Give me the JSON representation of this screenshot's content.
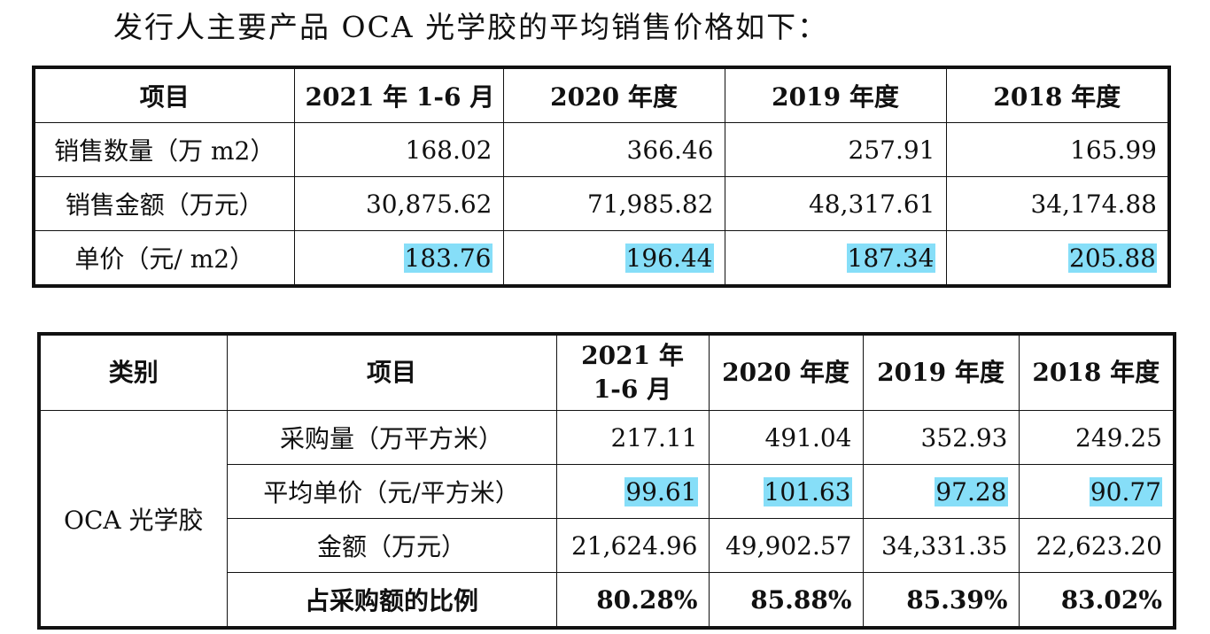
{
  "heading": "发行人主要产品 OCA 光学胶的平均销售价格如下：",
  "table1": {
    "headers": [
      "项目",
      "2021 年 1-6 月",
      "2020 年度",
      "2019 年度",
      "2018 年度"
    ],
    "rows": [
      {
        "label": "销售数量（万 m2）",
        "values": [
          "168.02",
          "366.46",
          "257.91",
          "165.99"
        ]
      },
      {
        "label": "销售金额（万元）",
        "values": [
          "30,875.62",
          "71,985.82",
          "48,317.61",
          "34,174.88"
        ]
      },
      {
        "label": "单价（元/ m2）",
        "values": [
          "183.76",
          "196.44",
          "187.34",
          "205.88"
        ]
      }
    ]
  },
  "table2": {
    "headers": [
      "类别",
      "项目",
      "2021 年",
      "1-6 月",
      "2020 年度",
      "2019 年度",
      "2018 年度"
    ],
    "category": "OCA 光学胶",
    "rows": [
      {
        "label": "采购量（万平方米）",
        "values": [
          "217.11",
          "491.04",
          "352.93",
          "249.25"
        ]
      },
      {
        "label": "平均单价（元/平方米）",
        "values": [
          "99.61",
          "101.63",
          "97.28",
          "90.77"
        ]
      },
      {
        "label": "金额（万元）",
        "values": [
          "21,624.96",
          "49,902.57",
          "34,331.35",
          "22,623.20"
        ]
      },
      {
        "label": "占采购额的比例",
        "values": [
          "80.28%",
          "85.88%",
          "85.39%",
          "83.02%"
        ]
      }
    ]
  },
  "colors": {
    "highlight": "#86def8",
    "border": "#111111"
  }
}
